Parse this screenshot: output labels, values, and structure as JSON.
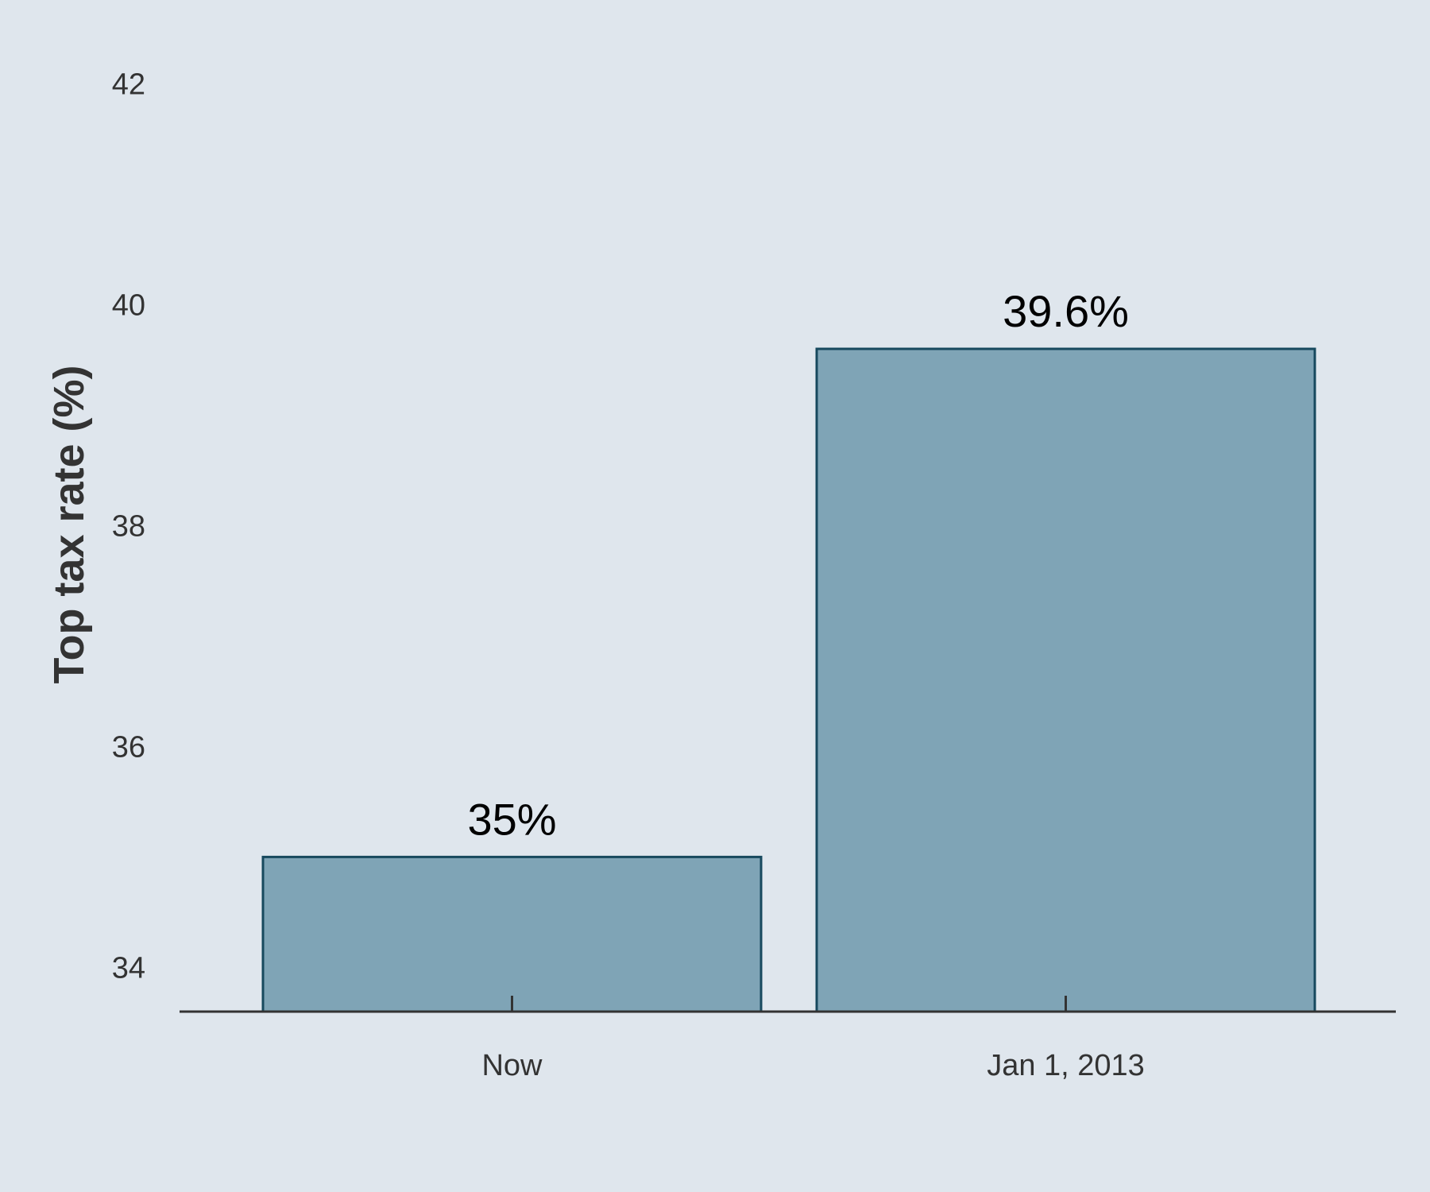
{
  "chart_data": {
    "type": "bar",
    "title": "",
    "xlabel": "",
    "ylabel": "Top tax rate (%)",
    "categories": [
      "Now",
      "Jan 1, 2013"
    ],
    "values": [
      35,
      39.6
    ],
    "data_labels": [
      "35%",
      "39.6%"
    ],
    "yticks": [
      34,
      36,
      38,
      40,
      42
    ],
    "ylim": [
      33.6,
      42.6
    ],
    "grid": false,
    "legend": "none",
    "colors": {
      "background": "#dfe6ed",
      "bar_fill": "#7fa4b6",
      "bar_stroke": "#17495e",
      "axis": "#333333",
      "text": "#333333",
      "label_text": "#000000"
    }
  }
}
